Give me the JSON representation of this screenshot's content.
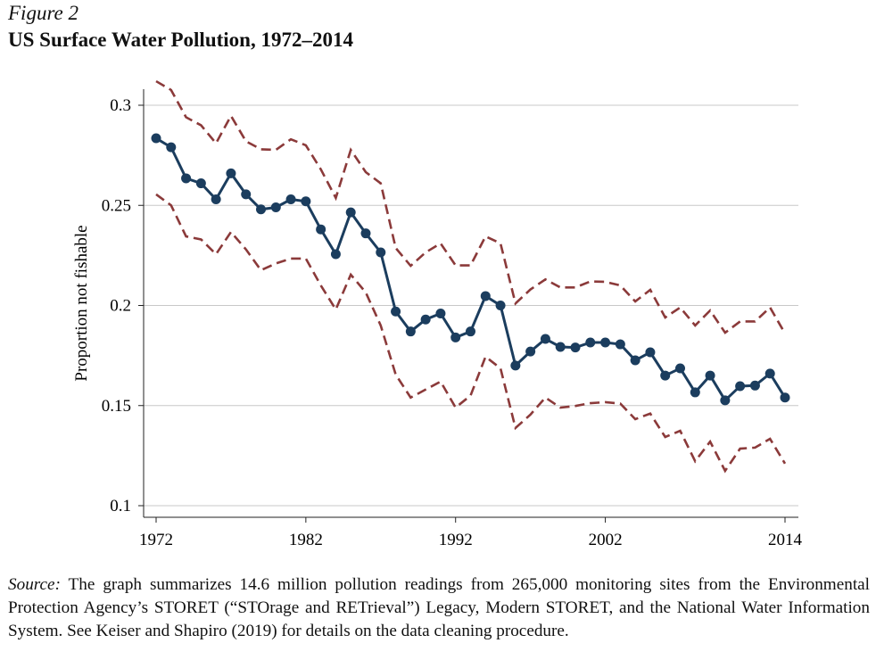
{
  "figure_label": "Figure 2",
  "title": "US Surface Water Pollution, 1972–2014",
  "source_label": "Source:",
  "source_text": " The graph summarizes 14.6 million pollution readings from 265,000 monitoring sites from the Environmental Protection Agency’s STORET (“STOrage and RETrieval”) Legacy, Modern STORET, and the National Water Information System. See Keiser and Shapiro (2019) for details on the data cleaning procedure.",
  "chart_data": {
    "type": "line",
    "title": "US Surface Water Pollution, 1972–2014",
    "xlabel": "",
    "ylabel": "Proportion not fishable",
    "xlim": [
      1972,
      2014
    ],
    "ylim": [
      0.1,
      0.3
    ],
    "xticks": [
      1972,
      1982,
      1992,
      2002,
      2014
    ],
    "yticks": [
      0.1,
      0.15,
      0.2,
      0.25,
      0.3
    ],
    "ytick_labels": [
      "0.1",
      "0.15",
      "0.2",
      "0.25",
      "0.3"
    ],
    "grid": "horizontal",
    "colors": {
      "estimate": "#1b3d5e",
      "bounds": "#8b3a3a"
    },
    "x": [
      1972,
      1973,
      1974,
      1975,
      1976,
      1977,
      1978,
      1979,
      1980,
      1981,
      1982,
      1983,
      1984,
      1985,
      1986,
      1987,
      1988,
      1989,
      1990,
      1991,
      1992,
      1993,
      1994,
      1995,
      1996,
      1997,
      1998,
      1999,
      2000,
      2001,
      2002,
      2003,
      2004,
      2005,
      2006,
      2007,
      2008,
      2009,
      2010,
      2011,
      2012,
      2013,
      2014
    ],
    "series": [
      {
        "style": "solid-markers",
        "values": [
          0.2835,
          0.279,
          0.2635,
          0.261,
          0.253,
          0.266,
          0.2555,
          0.248,
          0.249,
          0.253,
          0.252,
          0.238,
          0.2256,
          0.2465,
          0.236,
          0.2265,
          0.197,
          0.187,
          0.193,
          0.196,
          0.184,
          0.187,
          0.2047,
          0.2,
          0.17,
          0.177,
          0.1833,
          0.1793,
          0.179,
          0.1815,
          0.1815,
          0.1806,
          0.1726,
          0.1766,
          0.165,
          0.1686,
          0.1566,
          0.165,
          0.1526,
          0.1597,
          0.16,
          0.166,
          0.154
        ]
      },
      {
        "style": "dashed",
        "values": [
          0.312,
          0.3076,
          0.294,
          0.29,
          0.281,
          0.2947,
          0.282,
          0.278,
          0.2777,
          0.283,
          0.28,
          0.268,
          0.2537,
          0.2777,
          0.2666,
          0.261,
          0.2287,
          0.2198,
          0.2265,
          0.231,
          0.22,
          0.22,
          0.2345,
          0.231,
          0.201,
          0.208,
          0.213,
          0.209,
          0.209,
          0.212,
          0.2118,
          0.21,
          0.202,
          0.2078,
          0.194,
          0.199,
          0.19,
          0.1975,
          0.1864,
          0.192,
          0.192,
          0.199,
          0.186
        ]
      },
      {
        "style": "dashed",
        "values": [
          0.2555,
          0.25,
          0.2345,
          0.233,
          0.2256,
          0.2367,
          0.228,
          0.2176,
          0.221,
          0.2234,
          0.2234,
          0.21,
          0.198,
          0.2154,
          0.2065,
          0.19,
          0.1655,
          0.154,
          0.158,
          0.162,
          0.149,
          0.155,
          0.1744,
          0.1686,
          0.1388,
          0.1455,
          0.154,
          0.149,
          0.1498,
          0.1512,
          0.1517,
          0.151,
          0.1432,
          0.146,
          0.1343,
          0.1374,
          0.1222,
          0.132,
          0.1174,
          0.1285,
          0.129,
          0.1334,
          0.121
        ]
      }
    ]
  }
}
